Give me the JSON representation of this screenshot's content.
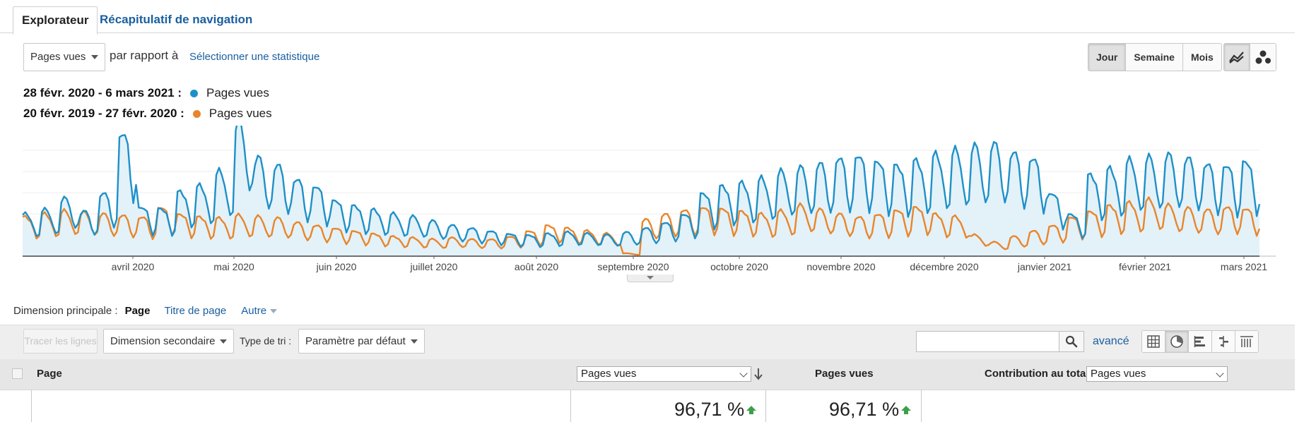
{
  "tabs": [
    {
      "label": "Explorateur",
      "active": true
    },
    {
      "label": "Récapitulatif de navigation",
      "active": false
    }
  ],
  "controls": {
    "metric_selected": "Pages vues",
    "versus_text": "par rapport à",
    "select_metric_link": "Sélectionner une statistique",
    "period_options": [
      "Jour",
      "Semaine",
      "Mois"
    ],
    "period_selected": "Jour",
    "view_modes": [
      "line-chart-icon",
      "motion-chart-icon"
    ]
  },
  "legend": [
    {
      "range": "28 févr. 2020 - 6 mars 2021 :",
      "series": "Pages vues",
      "color": "#1e90c8"
    },
    {
      "range": "20 févr. 2019 - 27 févr. 2020 :",
      "series": "Pages vues",
      "color": "#e8862a"
    }
  ],
  "chart_data": {
    "type": "line",
    "x_tick_labels": [
      "avril 2020",
      "mai 2020",
      "juin 2020",
      "juillet 2020",
      "août 2020",
      "septembre 2020",
      "octobre 2020",
      "novembre 2020",
      "décembre 2020",
      "janvier 2021",
      "février 2021",
      "mars 2021"
    ],
    "grid": true,
    "series": [
      {
        "name": "Pages vues",
        "color": "#1e90c8",
        "fill": "#e3f1f9",
        "weekly_values": [
          30,
          33,
          41,
          32,
          45,
          88,
          35,
          34,
          46,
          50,
          60,
          95,
          70,
          65,
          55,
          50,
          40,
          36,
          33,
          30,
          28,
          25,
          22,
          20,
          18,
          16,
          15,
          16,
          17,
          16,
          15,
          17,
          20,
          24,
          30,
          45,
          50,
          52,
          55,
          60,
          63,
          66,
          70,
          72,
          68,
          65,
          68,
          72,
          75,
          78,
          80,
          74,
          70,
          45,
          30,
          58,
          62,
          68,
          70,
          72,
          70,
          66,
          65,
          68
        ]
      },
      {
        "name": "Pages vues",
        "color": "#e8862a",
        "weekly_values": [
          28,
          30,
          32,
          31,
          30,
          29,
          28,
          35,
          30,
          28,
          27,
          29,
          28,
          27,
          24,
          22,
          20,
          18,
          16,
          14,
          13,
          12,
          13,
          12,
          12,
          14,
          18,
          22,
          20,
          18,
          16,
          2,
          26,
          30,
          33,
          35,
          34,
          32,
          30,
          32,
          36,
          33,
          30,
          28,
          30,
          33,
          35,
          30,
          28,
          15,
          10,
          14,
          18,
          22,
          28,
          32,
          36,
          38,
          40,
          36,
          34,
          33,
          35,
          34
        ]
      }
    ]
  },
  "dimension": {
    "label": "Dimension principale :",
    "current": "Page",
    "options": [
      "Titre de page",
      "Autre"
    ]
  },
  "toolbar": {
    "plot_rows": "Tracer les lignes",
    "secondary_dimension": "Dimension secondaire",
    "sort_label": "Type de tri :",
    "sort_value": "Paramètre par défaut",
    "search_placeholder": "",
    "advanced": "avancé",
    "table_views": [
      "grid-icon",
      "pie-icon",
      "bar-icon",
      "comparison-icon",
      "pivot-icon"
    ]
  },
  "table": {
    "col_page": "Page",
    "col_metric_select": "Pages vues",
    "col_pageviews": "Pages vues",
    "col_contrib_label": "Contribution au total :",
    "col_contrib_select": "Pages vues",
    "row_values": {
      "metric_change": "96,71 %",
      "pageviews_change": "96,71 %"
    },
    "up_color": "#3aa04a"
  }
}
